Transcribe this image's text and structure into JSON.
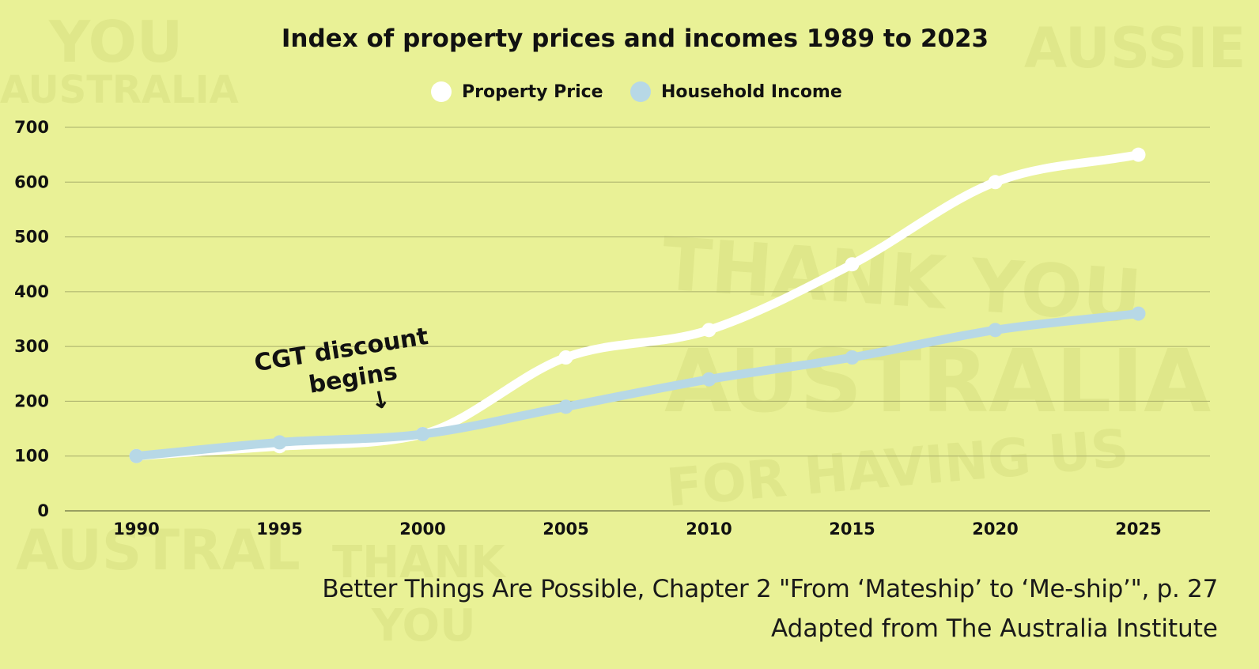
{
  "chart_data": {
    "type": "line",
    "title": "Index of property prices and incomes 1989 to 2023",
    "xlabel": "",
    "ylabel": "",
    "x": [
      1990,
      1995,
      2000,
      2005,
      2010,
      2015,
      2020,
      2025
    ],
    "x_tick_labels": [
      "1990",
      "1995",
      "2000",
      "2005",
      "2010",
      "2015",
      "2020",
      "2025"
    ],
    "y_ticks": [
      0,
      100,
      200,
      300,
      400,
      500,
      600,
      700
    ],
    "y_tick_labels": [
      "0",
      "100",
      "200",
      "300",
      "400",
      "500",
      "600",
      "700"
    ],
    "xlim": [
      1987.5,
      2027.5
    ],
    "ylim": [
      0,
      700
    ],
    "grid": true,
    "legend_position": "top-center",
    "series": [
      {
        "name": "Property Price",
        "color": "#ffffff",
        "values": [
          100,
          118,
          140,
          280,
          330,
          450,
          600,
          650
        ]
      },
      {
        "name": "Household Income",
        "color": "#b7d8e6",
        "values": [
          100,
          125,
          140,
          190,
          240,
          280,
          330,
          360
        ]
      }
    ],
    "annotations": [
      {
        "lines": [
          "CGT discount",
          "begins"
        ],
        "arrow": "↓",
        "x": 1998.5,
        "y": 200
      }
    ]
  },
  "caption": {
    "line1": "Better Things Are Possible, Chapter 2 \"From ‘Mateship’ to ‘Me-ship’\", p. 27",
    "line2": "Adapted from The Australia Institute"
  },
  "background_words": [
    "YOU",
    "AUSTRALIA",
    "AUSSIE",
    "THANK YOU",
    "AUSTRALIA",
    "FOR HAVING US",
    "AUSTRAL",
    "THANK",
    "YOU"
  ]
}
